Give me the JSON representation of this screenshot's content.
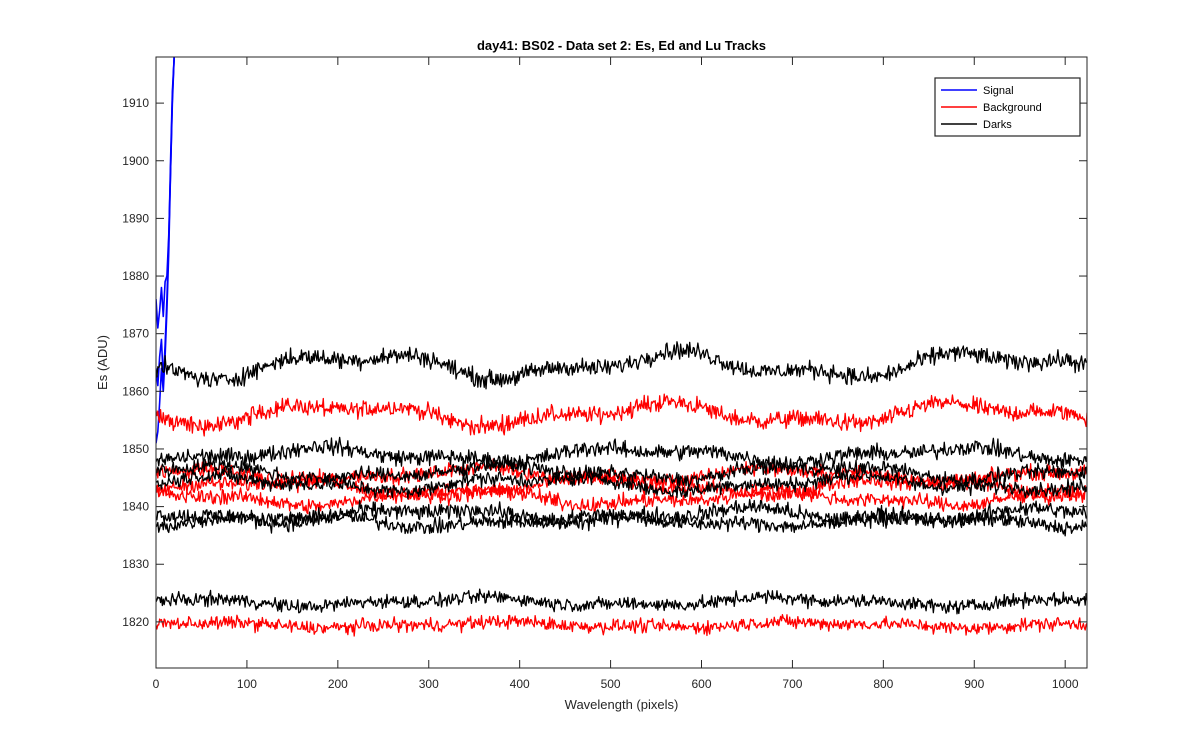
{
  "chart_data": {
    "type": "line",
    "title": "day41: BS02 - Data set 2: Es, Ed and Lu Tracks",
    "xlabel": "Wavelength (pixels)",
    "ylabel": "Es (ADU)",
    "xlim": [
      0,
      1024
    ],
    "ylim": [
      1812,
      1918
    ],
    "xticks": [
      0,
      100,
      200,
      300,
      400,
      500,
      600,
      700,
      800,
      900,
      1000
    ],
    "yticks": [
      1820,
      1830,
      1840,
      1850,
      1860,
      1870,
      1880,
      1890,
      1900,
      1910
    ],
    "legend": {
      "position": "top-right",
      "entries": [
        {
          "label": "Signal",
          "color": "#0000ff"
        },
        {
          "label": "Background",
          "color": "#ff0000"
        },
        {
          "label": "Darks",
          "color": "#000000"
        }
      ]
    },
    "series": [
      {
        "name": "Signal",
        "color": "#0000ff",
        "x": [
          0,
          2,
          4,
          6,
          8,
          10,
          12,
          14,
          16,
          18,
          20
        ],
        "y": [
          1876,
          1871,
          1874,
          1878,
          1873,
          1879,
          1880,
          1887,
          1898,
          1910,
          1918
        ]
      },
      {
        "name": "Signal",
        "color": "#0000ff",
        "x": [
          0,
          2,
          4,
          6,
          8,
          10,
          12,
          14,
          16,
          18,
          20
        ],
        "y": [
          1864,
          1861,
          1866,
          1869,
          1862,
          1868,
          1876,
          1886,
          1900,
          1912,
          1918
        ]
      },
      {
        "name": "Signal",
        "color": "#0000ff",
        "x": [
          0,
          2,
          4,
          6,
          8,
          10,
          12,
          14,
          16,
          18,
          20
        ],
        "y": [
          1851,
          1853,
          1858,
          1864,
          1860,
          1866,
          1874,
          1884,
          1898,
          1911,
          1918
        ]
      },
      {
        "name": "Background",
        "color": "#ff0000",
        "mean": 1856,
        "noise": 1.3,
        "wave": 1.5
      },
      {
        "name": "Background",
        "color": "#ff0000",
        "mean": 1845.5,
        "noise": 1.1,
        "wave": 1.0
      },
      {
        "name": "Background",
        "color": "#ff0000",
        "mean": 1843.5,
        "noise": 1.1,
        "wave": 1.2
      },
      {
        "name": "Background",
        "color": "#ff0000",
        "mean": 1841.5,
        "noise": 1.1,
        "wave": 1.0
      },
      {
        "name": "Background",
        "color": "#ff0000",
        "mean": 1819.5,
        "noise": 1.0,
        "wave": 0.4
      },
      {
        "name": "Darks",
        "color": "#000000",
        "mean": 1864.5,
        "noise": 1.3,
        "wave": 1.8
      },
      {
        "name": "Darks",
        "color": "#000000",
        "mean": 1849,
        "noise": 1.2,
        "wave": 1.0
      },
      {
        "name": "Darks",
        "color": "#000000",
        "mean": 1846,
        "noise": 1.1,
        "wave": 1.0
      },
      {
        "name": "Darks",
        "color": "#000000",
        "mean": 1844,
        "noise": 1.1,
        "wave": 1.0
      },
      {
        "name": "Darks",
        "color": "#000000",
        "mean": 1838.5,
        "noise": 1.2,
        "wave": 1.0
      },
      {
        "name": "Darks",
        "color": "#000000",
        "mean": 1837.5,
        "noise": 1.1,
        "wave": 0.8
      },
      {
        "name": "Darks",
        "color": "#000000",
        "mean": 1823.5,
        "noise": 1.0,
        "wave": 0.6
      }
    ]
  }
}
